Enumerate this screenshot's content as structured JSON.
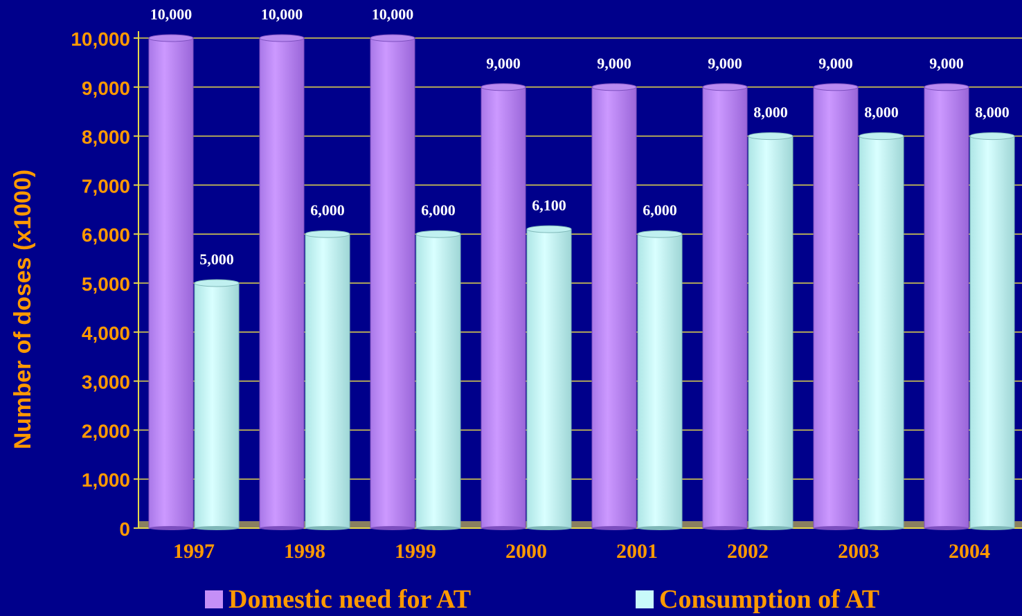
{
  "chart_data": {
    "type": "bar",
    "ylabel": "Number of doses (x1000)",
    "xlabel": "",
    "categories": [
      "1997",
      "1998",
      "1999",
      "2000",
      "2001",
      "2002",
      "2003",
      "2004"
    ],
    "ylim": [
      0,
      10000
    ],
    "yticks": [
      "0",
      "1,000",
      "2,000",
      "3,000",
      "4,000",
      "5,000",
      "6,000",
      "7,000",
      "8,000",
      "9,000",
      "10,000"
    ],
    "grid": true,
    "legend_position": "bottom",
    "series": [
      {
        "name": "Domestic need for AT",
        "values": [
          10000,
          10000,
          10000,
          9000,
          9000,
          9000,
          9000,
          9000
        ],
        "labels": [
          "10,000",
          "10,000",
          "10,000",
          "9,000",
          "9,000",
          "9,000",
          "9,000",
          "9,000"
        ],
        "color": "#c48ff7"
      },
      {
        "name": "Consumption of AT",
        "values": [
          5000,
          6000,
          6000,
          6100,
          6000,
          8000,
          8000,
          8000
        ],
        "labels": [
          "5,000",
          "6,000",
          "6,000",
          "6,100",
          "6,000",
          "8,000",
          "8,000",
          "8,000"
        ],
        "color": "#c8fafa"
      }
    ],
    "colors": {
      "background": "#00008b",
      "text": "#ff9900",
      "gridline": "#e6d84a",
      "data_label": "#ffffff",
      "floor": "#8a8060"
    }
  }
}
